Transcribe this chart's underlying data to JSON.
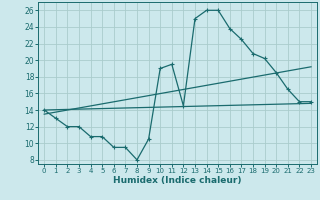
{
  "xlabel": "Humidex (Indice chaleur)",
  "bg_color": "#cce8ec",
  "grid_color": "#aacccc",
  "line_color": "#1a6b6e",
  "xlim": [
    -0.5,
    23.5
  ],
  "ylim": [
    7.5,
    27.0
  ],
  "xticks": [
    0,
    1,
    2,
    3,
    4,
    5,
    6,
    7,
    8,
    9,
    10,
    11,
    12,
    13,
    14,
    15,
    16,
    17,
    18,
    19,
    20,
    21,
    22,
    23
  ],
  "yticks": [
    8,
    10,
    12,
    14,
    16,
    18,
    20,
    22,
    24,
    26
  ],
  "curve1_x": [
    0,
    1,
    2,
    3,
    4,
    5,
    6,
    7,
    8,
    9,
    10,
    11,
    12,
    13,
    14,
    15,
    16,
    17,
    18,
    19,
    20,
    21,
    22,
    23
  ],
  "curve1_y": [
    14.0,
    13.0,
    12.0,
    12.0,
    10.8,
    10.8,
    9.5,
    9.5,
    8.0,
    10.5,
    19.0,
    19.5,
    14.5,
    25.0,
    26.0,
    26.0,
    23.8,
    22.5,
    20.8,
    20.2,
    18.5,
    16.5,
    15.0,
    15.0
  ],
  "curve2_x": [
    0,
    23
  ],
  "curve2_y": [
    14.0,
    14.8
  ],
  "curve3_x": [
    0,
    23
  ],
  "curve3_y": [
    13.5,
    19.2
  ]
}
